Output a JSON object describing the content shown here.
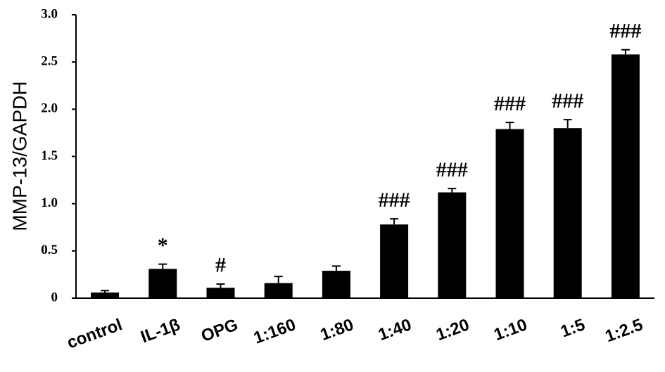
{
  "chart_data": {
    "type": "bar",
    "y_label": "MMP-13/GAPDH",
    "categories": [
      "control",
      "IL-1β",
      "OPG",
      "1:160",
      "1:80",
      "1:40",
      "1:20",
      "1:10",
      "1:5",
      "1:2.5"
    ],
    "values": [
      0.06,
      0.31,
      0.11,
      0.16,
      0.29,
      0.78,
      1.12,
      1.79,
      1.8,
      2.58
    ],
    "errors": [
      0.02,
      0.05,
      0.04,
      0.07,
      0.05,
      0.06,
      0.04,
      0.07,
      0.09,
      0.05
    ],
    "annotations": [
      null,
      "*",
      "#",
      null,
      null,
      "###",
      "###",
      "###",
      "###",
      "###"
    ],
    "color": "#000000",
    "ylim": [
      0,
      3.0
    ],
    "yticks": [
      0,
      0.5,
      {
        "value": 1,
        "label": "1.0"
      },
      1.5,
      {
        "value": 2,
        "label": "2.0"
      },
      2.5,
      {
        "value": 3,
        "label": "3.0"
      }
    ],
    "grid": false
  }
}
